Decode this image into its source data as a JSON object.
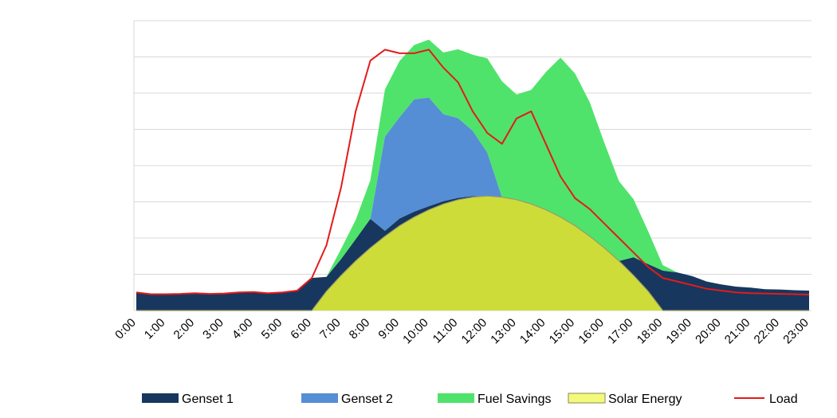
{
  "chart_data": {
    "type": "area",
    "title": "",
    "xlabel": "",
    "ylabel": "",
    "grid": true,
    "legend_position": "bottom",
    "ylim": [
      0,
      8
    ],
    "x": [
      0,
      0.5,
      1,
      1.5,
      2,
      2.5,
      3,
      3.5,
      4,
      4.5,
      5,
      5.5,
      6,
      6.5,
      7,
      7.5,
      8,
      8.5,
      9,
      9.5,
      10,
      10.5,
      11,
      11.5,
      12,
      12.5,
      13,
      13.5,
      14,
      14.5,
      15,
      15.5,
      16,
      16.5,
      17,
      17.5,
      18,
      18.5,
      19,
      19.5,
      20,
      20.5,
      21,
      21.5,
      22,
      22.5,
      23
    ],
    "categories": [
      "0:00",
      "1:00",
      "2:00",
      "3:00",
      "4:00",
      "5:00",
      "6:00",
      "7:00",
      "8:00",
      "9:00",
      "10:00",
      "11:00",
      "12:00",
      "13:00",
      "14:00",
      "15:00",
      "16:00",
      "17:00",
      "18:00",
      "19:00",
      "20:00",
      "21:00",
      "22:00",
      "23:00"
    ],
    "series": [
      {
        "name": "Solar Energy",
        "color": "#cddc39",
        "values": [
          0,
          0,
          0,
          0,
          0,
          0,
          0,
          0,
          0,
          0,
          0,
          0,
          0,
          0.53,
          0.97,
          1.37,
          1.73,
          2.05,
          2.34,
          2.58,
          2.78,
          2.94,
          3.06,
          3.13,
          3.16,
          3.13,
          3.06,
          2.94,
          2.78,
          2.58,
          2.34,
          2.05,
          1.73,
          1.37,
          0.97,
          0.53,
          0,
          0,
          0,
          0,
          0,
          0,
          0,
          0,
          0,
          0,
          0
        ]
      },
      {
        "name": "Genset 1",
        "color": "#17375e",
        "values": [
          0.5,
          0.45,
          0.45,
          0.46,
          0.48,
          0.46,
          0.47,
          0.5,
          0.51,
          0.48,
          0.5,
          0.55,
          0.9,
          0.4,
          0.45,
          0.6,
          0.8,
          0.15,
          0.2,
          0.15,
          0.1,
          0.08,
          0.05,
          0.03,
          0,
          0,
          0,
          0,
          0,
          0,
          0,
          0,
          0,
          0,
          0.5,
          0.75,
          1.1,
          1.05,
          0.95,
          0.8,
          0.72,
          0.66,
          0.63,
          0.59,
          0.58,
          0.56,
          0.55
        ]
      },
      {
        "name": "Genset 2",
        "color": "#558ed5",
        "values": [
          0,
          0,
          0,
          0,
          0,
          0,
          0,
          0,
          0,
          0,
          0,
          0,
          0,
          0,
          0,
          0,
          0,
          2.6,
          2.8,
          3.1,
          3,
          2.4,
          2.2,
          1.8,
          1.2,
          0,
          0,
          0,
          0,
          0,
          0,
          0,
          0,
          0,
          0,
          0,
          0,
          0,
          0,
          0,
          0,
          0,
          0,
          0,
          0,
          0,
          0
        ]
      },
      {
        "name": "Fuel Savings",
        "color": "#4fe36b",
        "values": [
          0,
          0,
          0,
          0,
          0,
          0,
          0,
          0,
          0,
          0,
          0,
          0,
          0,
          0,
          0.28,
          0.53,
          1.07,
          1.3,
          1.55,
          1.5,
          1.6,
          1.7,
          1.9,
          2.1,
          2.6,
          3.2,
          2.9,
          3.15,
          3.8,
          4.4,
          4.2,
          3.7,
          2.9,
          2.2,
          1.6,
          0.9,
          0.15,
          0,
          0,
          0,
          0,
          0,
          0,
          0,
          0,
          0,
          0
        ]
      },
      {
        "name": "Load",
        "color": "#e31b1b",
        "values": [
          0.5,
          0.45,
          0.45,
          0.46,
          0.48,
          0.46,
          0.47,
          0.5,
          0.51,
          0.48,
          0.5,
          0.55,
          0.9,
          1.8,
          3.4,
          5.5,
          6.9,
          7.2,
          7.1,
          7.1,
          7.2,
          6.7,
          6.3,
          5.5,
          4.9,
          4.6,
          5.3,
          5.5,
          4.6,
          3.7,
          3.1,
          2.8,
          2.4,
          2.0,
          1.6,
          1.2,
          0.9,
          0.8,
          0.7,
          0.6,
          0.55,
          0.5,
          0.48,
          0.47,
          0.46,
          0.45,
          0.44
        ]
      }
    ],
    "legend": [
      {
        "label": "Genset 1",
        "color": "#17375e",
        "kind": "swatch"
      },
      {
        "label": "Genset 2",
        "color": "#558ed5",
        "kind": "swatch"
      },
      {
        "label": "Fuel Savings",
        "color": "#4fe36b",
        "kind": "swatch"
      },
      {
        "label": "Solar Energy",
        "color": "#f3f97a",
        "kind": "swatch"
      },
      {
        "label": "Load",
        "color": "#e31b1b",
        "kind": "line"
      }
    ]
  }
}
